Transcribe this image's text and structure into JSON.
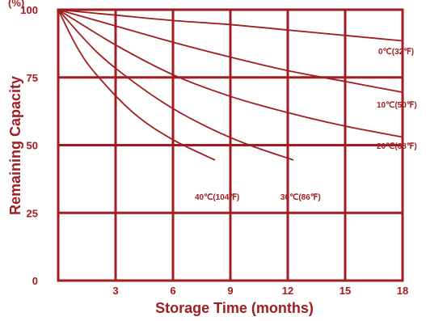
{
  "chart_data": {
    "type": "line",
    "xlabel": "Storage Time (months)",
    "ylabel": "Remaining Capacity",
    "y_unit": "(%)",
    "xlim": [
      0,
      18
    ],
    "ylim": [
      0,
      100
    ],
    "x_ticks": [
      "3",
      "6",
      "9",
      "12",
      "15",
      "18"
    ],
    "y_ticks": [
      "0",
      "25",
      "50",
      "75",
      "100"
    ],
    "grid": true,
    "series": [
      {
        "name": "0℃(32℉)",
        "x": [
          0,
          3,
          6,
          9,
          12,
          15,
          18
        ],
        "y": [
          100,
          98,
          96,
          94.5,
          92.5,
          90.5,
          88.5
        ]
      },
      {
        "name": "10℃(50℉)",
        "x": [
          0,
          3,
          6,
          9,
          12,
          15,
          18
        ],
        "y": [
          100,
          94,
          88,
          82.5,
          77.5,
          73.5,
          69.5
        ]
      },
      {
        "name": "20℃(68℉)",
        "x": [
          0,
          3,
          6,
          9,
          12,
          15,
          18
        ],
        "y": [
          100,
          87,
          76,
          68,
          62,
          57,
          53
        ]
      },
      {
        "name": "30℃(86℉)",
        "x": [
          0,
          2,
          4,
          6,
          8,
          10,
          12.3
        ],
        "y": [
          100,
          84.5,
          73,
          63.5,
          56,
          50,
          44.5
        ]
      },
      {
        "name": "40℃(104℉)",
        "x": [
          0,
          1,
          2,
          4,
          6,
          8.2
        ],
        "y": [
          100,
          86,
          76,
          61.5,
          52,
          44.5
        ]
      }
    ]
  }
}
